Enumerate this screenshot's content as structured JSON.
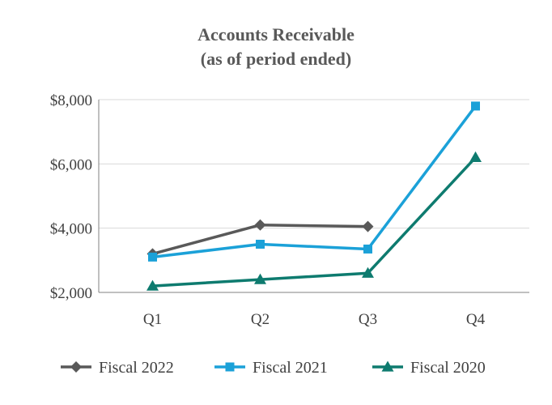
{
  "chart_data": {
    "type": "line",
    "title": "Accounts Receivable",
    "subtitle": "(as of period ended)",
    "xlabel": "",
    "ylabel": "",
    "categories": [
      "Q1",
      "Q2",
      "Q3",
      "Q4"
    ],
    "ylim": [
      2000,
      8000
    ],
    "yticks": [
      2000,
      4000,
      6000,
      8000
    ],
    "ytick_labels": [
      "$2,000",
      "$4,000",
      "$6,000",
      "$8,000"
    ],
    "grid": true,
    "legend_position": "bottom",
    "series": [
      {
        "name": "Fiscal 2022",
        "values": [
          3200,
          4100,
          4050,
          null
        ],
        "color": "#595959",
        "marker": "diamond"
      },
      {
        "name": "Fiscal 2021",
        "values": [
          3100,
          3500,
          3350,
          7800
        ],
        "color": "#1ba1d8",
        "marker": "square"
      },
      {
        "name": "Fiscal 2020",
        "values": [
          2200,
          2400,
          2600,
          6200
        ],
        "color": "#0e7b6f",
        "marker": "triangle"
      }
    ]
  }
}
